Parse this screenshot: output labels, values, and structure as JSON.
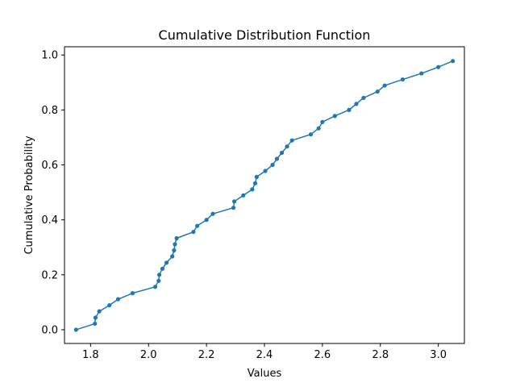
{
  "chart_data": {
    "type": "line",
    "title": "Cumulative Distribution Function",
    "xlabel": "Values",
    "ylabel": "Cumulative Probability",
    "xlim": [
      1.71,
      3.09
    ],
    "ylim": [
      -0.05,
      1.03
    ],
    "xticks": [
      1.8,
      2.0,
      2.2,
      2.4,
      2.6,
      2.8,
      3.0
    ],
    "xtick_labels": [
      "1.8",
      "2.0",
      "2.2",
      "2.4",
      "2.6",
      "2.8",
      "3.0"
    ],
    "yticks": [
      0.0,
      0.2,
      0.4,
      0.6,
      0.8,
      1.0
    ],
    "ytick_labels": [
      "0.0",
      "0.2",
      "0.4",
      "0.6",
      "0.8",
      "1.0"
    ],
    "grid": false,
    "series": [
      {
        "color": "#1f77b4",
        "marker": "circle",
        "points": [
          [
            1.75,
            0.0
          ],
          [
            1.815,
            0.022
          ],
          [
            1.817,
            0.044
          ],
          [
            1.83,
            0.067
          ],
          [
            1.865,
            0.089
          ],
          [
            1.895,
            0.111
          ],
          [
            1.945,
            0.133
          ],
          [
            2.023,
            0.156
          ],
          [
            2.035,
            0.178
          ],
          [
            2.037,
            0.2
          ],
          [
            2.048,
            0.222
          ],
          [
            2.062,
            0.244
          ],
          [
            2.082,
            0.267
          ],
          [
            2.088,
            0.289
          ],
          [
            2.091,
            0.311
          ],
          [
            2.097,
            0.333
          ],
          [
            2.155,
            0.356
          ],
          [
            2.168,
            0.378
          ],
          [
            2.2,
            0.4
          ],
          [
            2.222,
            0.422
          ],
          [
            2.293,
            0.444
          ],
          [
            2.296,
            0.467
          ],
          [
            2.327,
            0.489
          ],
          [
            2.358,
            0.511
          ],
          [
            2.368,
            0.533
          ],
          [
            2.373,
            0.556
          ],
          [
            2.403,
            0.578
          ],
          [
            2.428,
            0.6
          ],
          [
            2.443,
            0.622
          ],
          [
            2.46,
            0.644
          ],
          [
            2.478,
            0.667
          ],
          [
            2.495,
            0.689
          ],
          [
            2.56,
            0.711
          ],
          [
            2.587,
            0.733
          ],
          [
            2.6,
            0.756
          ],
          [
            2.643,
            0.778
          ],
          [
            2.692,
            0.8
          ],
          [
            2.717,
            0.822
          ],
          [
            2.742,
            0.844
          ],
          [
            2.79,
            0.867
          ],
          [
            2.815,
            0.889
          ],
          [
            2.877,
            0.911
          ],
          [
            2.942,
            0.933
          ],
          [
            3.0,
            0.956
          ],
          [
            3.05,
            0.978
          ]
        ]
      }
    ]
  }
}
